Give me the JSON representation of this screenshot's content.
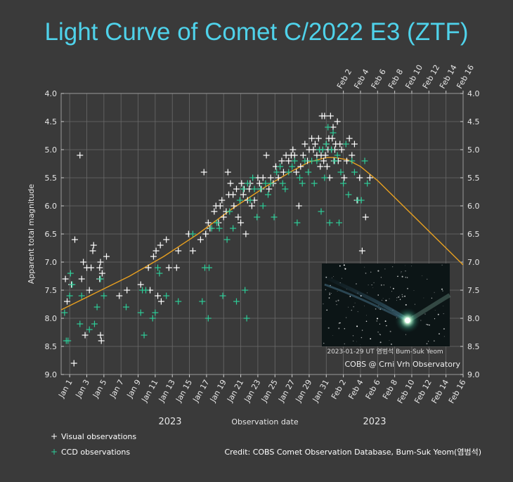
{
  "title": "Light Curve of Comet C/2022 E3 (ZTF)",
  "colors": {
    "background": "#3a3a3a",
    "title": "#4fd2ea",
    "visual": "#ffffff",
    "ccd": "#2ecc98",
    "fit_curve": "#e8a020",
    "grid": "#6a6a6a"
  },
  "chart_data": {
    "type": "scatter",
    "title": "Light Curve of Comet C/2022 E3 (ZTF)",
    "xlabel": "Observation date",
    "ylabel": "Apparent total magnitude",
    "year_labels": [
      "2023",
      "2023"
    ],
    "x_unit": "days since Jan 0 2023",
    "xlim": [
      0,
      47
    ],
    "ylim": [
      4.0,
      9.0
    ],
    "y_inverted": true,
    "y_ticks": [
      "4.0",
      "4.5",
      "5.0",
      "5.5",
      "6.0",
      "6.5",
      "7.0",
      "7.5",
      "8.0",
      "8.5",
      "9.0"
    ],
    "x_ticks_bottom": [
      "Jan 1",
      "Jan 3",
      "Jan 5",
      "Jan 7",
      "Jan 9",
      "Jan 11",
      "Jan 13",
      "Jan 15",
      "Jan 17",
      "Jan 19",
      "Jan 21",
      "Jan 23",
      "Jan 25",
      "Jan 27",
      "Jan 29",
      "Jan 31",
      "Feb 2",
      "Feb 4",
      "Feb 6",
      "Feb 8",
      "Feb 10",
      "Feb 12",
      "Feb 14",
      "Feb 16"
    ],
    "x_ticks_top": [
      "Feb 2",
      "Feb 4",
      "Feb 6",
      "Feb 8",
      "Feb 10",
      "Feb 12",
      "Feb 14",
      "Feb 16"
    ],
    "grid": true,
    "legend_position": "bottom-left",
    "series": [
      {
        "name": "Visual observations",
        "marker": "+",
        "color": "#ffffff",
        "points": [
          [
            0.5,
            7.3
          ],
          [
            0.7,
            7.7
          ],
          [
            1.2,
            7.4
          ],
          [
            1.5,
            8.8
          ],
          [
            1.6,
            6.6
          ],
          [
            2.2,
            5.1
          ],
          [
            2.4,
            7.3
          ],
          [
            2.6,
            7.0
          ],
          [
            2.8,
            8.3
          ],
          [
            3.0,
            7.1
          ],
          [
            3.3,
            7.5
          ],
          [
            3.5,
            7.1
          ],
          [
            3.7,
            6.8
          ],
          [
            3.8,
            6.7
          ],
          [
            4.5,
            7.1
          ],
          [
            4.5,
            7.3
          ],
          [
            4.6,
            7.0
          ],
          [
            4.6,
            8.3
          ],
          [
            4.7,
            8.4
          ],
          [
            4.8,
            7.2
          ],
          [
            5.3,
            6.9
          ],
          [
            6.8,
            7.6
          ],
          [
            7.7,
            7.5
          ],
          [
            9.3,
            7.4
          ],
          [
            10.2,
            7.1
          ],
          [
            10.4,
            7.5
          ],
          [
            10.8,
            6.9
          ],
          [
            11.1,
            6.8
          ],
          [
            11.3,
            7.6
          ],
          [
            11.6,
            6.7
          ],
          [
            11.7,
            7.7
          ],
          [
            12.3,
            6.6
          ],
          [
            12.6,
            7.1
          ],
          [
            13.5,
            7.1
          ],
          [
            13.7,
            6.8
          ],
          [
            14.9,
            6.5
          ],
          [
            15.4,
            6.8
          ],
          [
            16.3,
            6.6
          ],
          [
            16.7,
            5.4
          ],
          [
            16.9,
            6.5
          ],
          [
            17.2,
            6.3
          ],
          [
            17.4,
            6.4
          ],
          [
            17.9,
            6.1
          ],
          [
            18.1,
            6.0
          ],
          [
            18.4,
            6.3
          ],
          [
            18.6,
            6.0
          ],
          [
            18.8,
            5.9
          ],
          [
            19.0,
            6.2
          ],
          [
            19.3,
            6.1
          ],
          [
            19.5,
            5.4
          ],
          [
            19.6,
            5.8
          ],
          [
            19.8,
            5.6
          ],
          [
            20.1,
            5.8
          ],
          [
            20.2,
            6.0
          ],
          [
            20.5,
            5.7
          ],
          [
            20.7,
            6.2
          ],
          [
            21.0,
            6.3
          ],
          [
            21.1,
            5.6
          ],
          [
            21.3,
            5.8
          ],
          [
            21.4,
            5.7
          ],
          [
            21.6,
            6.5
          ],
          [
            21.8,
            5.9
          ],
          [
            22.0,
            5.7
          ],
          [
            22.1,
            5.6
          ],
          [
            22.3,
            6.0
          ],
          [
            22.6,
            5.9
          ],
          [
            23.0,
            5.5
          ],
          [
            23.2,
            5.6
          ],
          [
            23.4,
            5.7
          ],
          [
            23.6,
            5.5
          ],
          [
            24.0,
            5.1
          ],
          [
            24.3,
            5.7
          ],
          [
            24.5,
            5.5
          ],
          [
            24.8,
            5.6
          ],
          [
            25.1,
            5.3
          ],
          [
            25.4,
            5.5
          ],
          [
            25.8,
            5.2
          ],
          [
            26.0,
            5.4
          ],
          [
            26.3,
            5.1
          ],
          [
            26.6,
            5.2
          ],
          [
            26.9,
            5.1
          ],
          [
            27.1,
            5.0
          ],
          [
            27.3,
            5.1
          ],
          [
            27.5,
            5.4
          ],
          [
            27.8,
            6.0
          ],
          [
            28.0,
            5.3
          ],
          [
            28.3,
            5.1
          ],
          [
            28.5,
            4.9
          ],
          [
            28.8,
            5.2
          ],
          [
            29.0,
            5.0
          ],
          [
            29.3,
            4.8
          ],
          [
            29.5,
            5.0
          ],
          [
            29.7,
            4.9
          ],
          [
            29.9,
            5.1
          ],
          [
            30.1,
            4.8
          ],
          [
            30.2,
            5.0
          ],
          [
            30.3,
            5.3
          ],
          [
            30.4,
            5.1
          ],
          [
            30.5,
            4.4
          ],
          [
            30.6,
            5.0
          ],
          [
            30.7,
            5.2
          ],
          [
            30.8,
            4.4
          ],
          [
            30.9,
            5.1
          ],
          [
            31.0,
            4.9
          ],
          [
            31.1,
            5.3
          ],
          [
            31.2,
            5.0
          ],
          [
            31.3,
            4.8
          ],
          [
            31.4,
            5.5
          ],
          [
            31.5,
            4.4
          ],
          [
            31.6,
            5.0
          ],
          [
            31.7,
            4.8
          ],
          [
            31.8,
            4.6
          ],
          [
            31.9,
            5.2
          ],
          [
            32.0,
            5.0
          ],
          [
            32.1,
            4.9
          ],
          [
            32.3,
            4.5
          ],
          [
            32.4,
            5.2
          ],
          [
            32.6,
            4.9
          ],
          [
            32.8,
            5.0
          ],
          [
            33.1,
            5.5
          ],
          [
            33.4,
            5.2
          ],
          [
            33.7,
            4.8
          ],
          [
            34.0,
            5.1
          ],
          [
            34.3,
            4.9
          ],
          [
            34.6,
            5.9
          ],
          [
            34.9,
            5.5
          ],
          [
            35.2,
            6.8
          ],
          [
            35.6,
            6.2
          ],
          [
            36.1,
            5.5
          ]
        ]
      },
      {
        "name": "CCD observations",
        "marker": "+",
        "color": "#2ecc98",
        "points": [
          [
            0.4,
            7.9
          ],
          [
            0.6,
            8.4
          ],
          [
            0.8,
            8.4
          ],
          [
            1.0,
            7.6
          ],
          [
            1.1,
            7.2
          ],
          [
            1.3,
            7.4
          ],
          [
            2.2,
            8.1
          ],
          [
            2.4,
            7.6
          ],
          [
            3.3,
            8.2
          ],
          [
            3.9,
            8.1
          ],
          [
            4.2,
            7.8
          ],
          [
            4.6,
            7.3
          ],
          [
            5.0,
            7.6
          ],
          [
            7.6,
            7.8
          ],
          [
            9.3,
            7.9
          ],
          [
            9.5,
            7.5
          ],
          [
            9.7,
            8.3
          ],
          [
            9.9,
            7.5
          ],
          [
            10.7,
            8.0
          ],
          [
            11.0,
            7.9
          ],
          [
            11.3,
            7.1
          ],
          [
            11.5,
            7.2
          ],
          [
            12.3,
            7.6
          ],
          [
            13.7,
            7.7
          ],
          [
            15.4,
            6.5
          ],
          [
            16.5,
            7.7
          ],
          [
            16.8,
            7.1
          ],
          [
            17.2,
            8.0
          ],
          [
            17.3,
            7.1
          ],
          [
            17.6,
            6.4
          ],
          [
            18.2,
            6.3
          ],
          [
            18.5,
            6.4
          ],
          [
            18.9,
            7.6
          ],
          [
            19.4,
            6.6
          ],
          [
            19.7,
            6.1
          ],
          [
            20.1,
            6.4
          ],
          [
            20.5,
            7.7
          ],
          [
            20.9,
            5.9
          ],
          [
            21.3,
            5.7
          ],
          [
            21.5,
            7.5
          ],
          [
            21.7,
            8.0
          ],
          [
            21.8,
            5.6
          ],
          [
            22.1,
            5.9
          ],
          [
            22.4,
            5.5
          ],
          [
            22.6,
            5.7
          ],
          [
            22.9,
            6.2
          ],
          [
            23.3,
            5.7
          ],
          [
            23.6,
            6.0
          ],
          [
            23.9,
            5.6
          ],
          [
            24.2,
            5.8
          ],
          [
            24.5,
            5.6
          ],
          [
            24.9,
            6.2
          ],
          [
            25.2,
            5.4
          ],
          [
            25.6,
            5.3
          ],
          [
            25.9,
            5.6
          ],
          [
            26.2,
            5.7
          ],
          [
            26.6,
            5.4
          ],
          [
            27.0,
            5.3
          ],
          [
            27.3,
            5.2
          ],
          [
            27.6,
            6.3
          ],
          [
            27.9,
            5.5
          ],
          [
            28.2,
            5.6
          ],
          [
            28.5,
            5.2
          ],
          [
            28.9,
            5.4
          ],
          [
            29.3,
            5.2
          ],
          [
            29.6,
            5.6
          ],
          [
            29.9,
            5.2
          ],
          [
            30.2,
            5.0
          ],
          [
            30.4,
            6.1
          ],
          [
            30.6,
            5.0
          ],
          [
            30.8,
            5.5
          ],
          [
            31.0,
            4.9
          ],
          [
            31.2,
            4.6
          ],
          [
            31.4,
            6.3
          ],
          [
            31.6,
            5.0
          ],
          [
            31.8,
            4.7
          ],
          [
            32.0,
            5.2
          ],
          [
            32.3,
            5.1
          ],
          [
            32.5,
            6.3
          ],
          [
            32.7,
            5.4
          ],
          [
            33.0,
            5.6
          ],
          [
            33.3,
            4.9
          ],
          [
            33.6,
            5.8
          ],
          [
            34.0,
            5.2
          ],
          [
            34.3,
            5.4
          ],
          [
            34.7,
            5.9
          ],
          [
            35.1,
            5.9
          ],
          [
            35.5,
            5.2
          ],
          [
            35.8,
            5.6
          ]
        ]
      },
      {
        "name": "",
        "type": "line",
        "color": "#e8a020",
        "points": [
          [
            0,
            7.85
          ],
          [
            4,
            7.55
          ],
          [
            8,
            7.25
          ],
          [
            12,
            6.9
          ],
          [
            16,
            6.5
          ],
          [
            20,
            6.05
          ],
          [
            24,
            5.65
          ],
          [
            27,
            5.38
          ],
          [
            29,
            5.22
          ],
          [
            31,
            5.14
          ],
          [
            32,
            5.14
          ],
          [
            33.5,
            5.18
          ],
          [
            35,
            5.3
          ],
          [
            37,
            5.55
          ],
          [
            39,
            5.85
          ],
          [
            41,
            6.15
          ],
          [
            43,
            6.45
          ],
          [
            45,
            6.75
          ],
          [
            47,
            7.05
          ]
        ]
      }
    ]
  },
  "photo": {
    "caption": "2023-01-29 UT 염범석  Bum-Suk Yeom",
    "source": "COBS @ Crni Vrh Observatory"
  },
  "legend": {
    "visual_label": "Visual observations",
    "ccd_label": "CCD observations"
  },
  "credit": "Credit: COBS Comet Observation Database, Bum-Suk Yeom(염범석)"
}
